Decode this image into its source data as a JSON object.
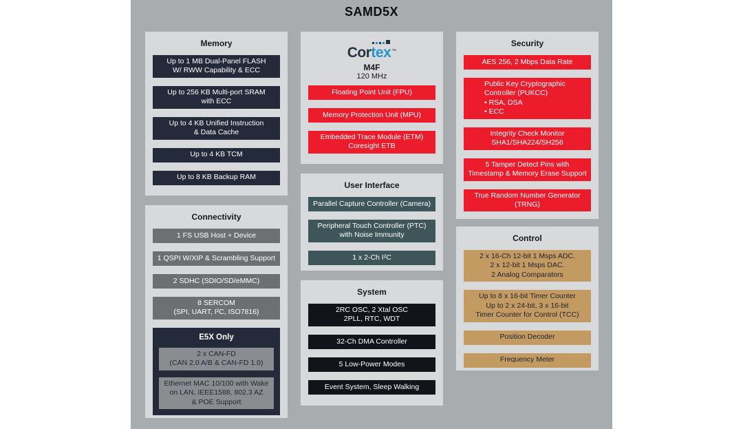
{
  "title": "SAMD5X",
  "colors": {
    "canvas": "#a9acae",
    "panel": "#d8d9da",
    "navy": "#252a3a",
    "gray_box": "#6e6f72",
    "gray_inner_box": "#8a8c8f",
    "red": "#ec1c2d",
    "teal": "#3e5659",
    "black_box": "#131419",
    "tan": "#c49a63",
    "cortex_blue": "#2496c8"
  },
  "panels": {
    "memory": {
      "title": "Memory",
      "items": [
        {
          "lines": [
            "Up to 1 MB  Dual-Panel FLASH",
            "W/ RWW  Capability & ECC"
          ]
        },
        {
          "lines": [
            "Up to 256 KB Multi-port SRAM",
            "with ECC"
          ]
        },
        {
          "lines": [
            "Up to 4 KB  Unified Instruction",
            "& Data Cache"
          ]
        },
        {
          "lines": [
            "Up to 4 KB TCM"
          ]
        },
        {
          "lines": [
            "Up to 8 KB Backup RAM"
          ]
        }
      ]
    },
    "connectivity": {
      "title": "Connectivity",
      "items": [
        {
          "lines": [
            "1 FS USB Host + Device"
          ]
        },
        {
          "lines": [
            "1 QSPI W/XIP & Scrambling Support"
          ]
        },
        {
          "lines": [
            "2  SDHC (SDIO/SD/eMMC)"
          ]
        },
        {
          "lines": [
            "8 SERCOM",
            "(SPI, UART, I²C, ISO7816)"
          ]
        }
      ],
      "e5x": {
        "title": "E5X Only",
        "items": [
          {
            "lines": [
              "2 x CAN-FD",
              "(CAN 2.0 A/B & CAN-FD 1.0)"
            ]
          },
          {
            "lines": [
              "Ethernet MAC 10/100 with Wake",
              "on LAN, IEEE1588, 802.3 AZ",
              "& POE Support"
            ]
          }
        ]
      }
    },
    "cortex": {
      "logo_cor": "Cor",
      "logo_tex": "tex",
      "trademark": "™",
      "model": "M4F",
      "clock": "120 MHz",
      "items": [
        {
          "lines": [
            "Floating Point Unit (FPU)"
          ]
        },
        {
          "lines": [
            "Memory Protection Unit (MPU)"
          ]
        },
        {
          "lines": [
            "Embedded Trace Module (ETM)",
            "Coresight  ETB"
          ]
        }
      ]
    },
    "user_interface": {
      "title": "User Interface",
      "items": [
        {
          "lines": [
            "Parallel Capture Controller (Camera)"
          ]
        },
        {
          "lines": [
            "Peripheral Touch Controller (PTC)",
            "with Noise Immunity"
          ]
        },
        {
          "lines": [
            "1 x 2-Ch I²C"
          ]
        }
      ]
    },
    "system": {
      "title": "System",
      "items": [
        {
          "lines": [
            "2RC OSC, 2 Xtal OSC",
            "2PLL, RTC, WDT"
          ]
        },
        {
          "lines": [
            "32-Ch DMA Controller"
          ]
        },
        {
          "lines": [
            "5 Low-Power Modes"
          ]
        },
        {
          "lines": [
            "Event System, Sleep Walking"
          ]
        }
      ]
    },
    "security": {
      "title": "Security",
      "items": [
        {
          "lines": [
            "AES 256, 2 Mbps Data Rate"
          ]
        },
        {
          "lines": [
            "Public Key Cryptographic",
            "Controller (PUKCC)",
            "• RSA, DSA",
            "• ECC"
          ]
        },
        {
          "lines": [
            "Integrity Check Monitor",
            "SHA1/SHA224/SH256"
          ]
        },
        {
          "lines": [
            "5 Tamper Detect  Pins with",
            "Timestamp & Memory Erase Support"
          ]
        },
        {
          "lines": [
            "True Random Number Generator",
            "(TRNG)"
          ]
        }
      ]
    },
    "control": {
      "title": "Control",
      "items": [
        {
          "lines": [
            "2 x 16-Ch 12-bit 1 Msps ADC.",
            "2 x 12-bit 1 Msps DAC.",
            "2 Analog Comparators"
          ]
        },
        {
          "lines": [
            "Up to 8 x 16-bit Timer Counter",
            "Up to 2 x 24-bit, 3 x 16-bit",
            "Timer Counter for Control (TCC)"
          ]
        },
        {
          "lines": [
            "Position Decoder"
          ]
        },
        {
          "lines": [
            "Frequency Meter"
          ]
        }
      ]
    }
  }
}
